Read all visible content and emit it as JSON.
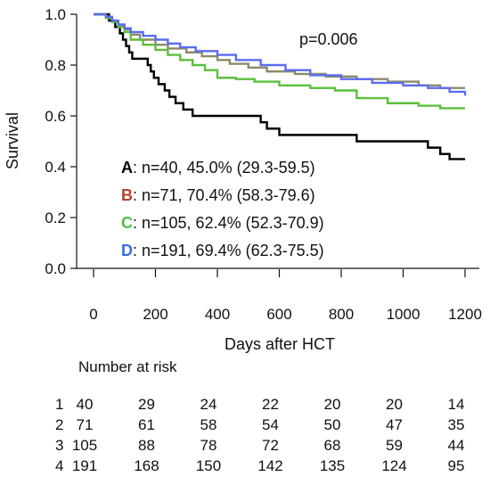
{
  "chart_data": {
    "type": "line",
    "step": true,
    "xlabel": "Days after HCT",
    "ylabel": "Survival",
    "xlim": [
      0,
      1200
    ],
    "ylim": [
      0,
      1.0
    ],
    "xticks": [
      "0",
      "200",
      "400",
      "600",
      "800",
      "1000",
      "1200"
    ],
    "yticks": [
      "0.0",
      "0.2",
      "0.4",
      "0.6",
      "0.8",
      "1.0"
    ],
    "grid": false,
    "annotation": "p=0.006",
    "legend": [
      {
        "letter": "A",
        "color": "#000000",
        "text": ": n=40, 45.0% (29.3-59.5)"
      },
      {
        "letter": "B",
        "color": "#b0442c",
        "text": ": n=71, 70.4% (58.3-79.6)"
      },
      {
        "letter": "C",
        "color": "#4bbf4b",
        "text": ": n=105, 62.4% (52.3-70.9)"
      },
      {
        "letter": "D",
        "color": "#3b6fe0",
        "text": ": n=191, 69.4% (62.3-75.5)"
      }
    ],
    "series": [
      {
        "color": "#000000",
        "points": [
          [
            0,
            1.0
          ],
          [
            40,
            1.0
          ],
          [
            50,
            0.975
          ],
          [
            70,
            0.95
          ],
          [
            85,
            0.925
          ],
          [
            95,
            0.9
          ],
          [
            105,
            0.875
          ],
          [
            115,
            0.85
          ],
          [
            125,
            0.825
          ],
          [
            175,
            0.8
          ],
          [
            185,
            0.775
          ],
          [
            195,
            0.75
          ],
          [
            210,
            0.725
          ],
          [
            230,
            0.7
          ],
          [
            245,
            0.675
          ],
          [
            265,
            0.65
          ],
          [
            290,
            0.625
          ],
          [
            320,
            0.6
          ],
          [
            540,
            0.575
          ],
          [
            560,
            0.55
          ],
          [
            600,
            0.525
          ],
          [
            850,
            0.5
          ],
          [
            1080,
            0.475
          ],
          [
            1120,
            0.45
          ],
          [
            1150,
            0.43
          ],
          [
            1200,
            0.43
          ]
        ]
      },
      {
        "color": "#8b8b6b",
        "points": [
          [
            0,
            1.0
          ],
          [
            30,
            1.0
          ],
          [
            40,
            0.985
          ],
          [
            60,
            0.97
          ],
          [
            80,
            0.955
          ],
          [
            100,
            0.94
          ],
          [
            120,
            0.92
          ],
          [
            150,
            0.9
          ],
          [
            200,
            0.88
          ],
          [
            240,
            0.865
          ],
          [
            300,
            0.85
          ],
          [
            350,
            0.835
          ],
          [
            400,
            0.82
          ],
          [
            440,
            0.805
          ],
          [
            500,
            0.79
          ],
          [
            560,
            0.775
          ],
          [
            650,
            0.765
          ],
          [
            750,
            0.755
          ],
          [
            850,
            0.745
          ],
          [
            950,
            0.735
          ],
          [
            1050,
            0.72
          ],
          [
            1120,
            0.71
          ],
          [
            1200,
            0.71
          ]
        ]
      },
      {
        "color": "#5cbf3c",
        "points": [
          [
            0,
            1.0
          ],
          [
            20,
            1.0
          ],
          [
            40,
            0.985
          ],
          [
            60,
            0.97
          ],
          [
            80,
            0.95
          ],
          [
            100,
            0.93
          ],
          [
            120,
            0.9
          ],
          [
            160,
            0.88
          ],
          [
            200,
            0.86
          ],
          [
            240,
            0.84
          ],
          [
            280,
            0.82
          ],
          [
            320,
            0.8
          ],
          [
            360,
            0.78
          ],
          [
            400,
            0.75
          ],
          [
            460,
            0.745
          ],
          [
            520,
            0.735
          ],
          [
            600,
            0.72
          ],
          [
            700,
            0.71
          ],
          [
            780,
            0.7
          ],
          [
            850,
            0.67
          ],
          [
            950,
            0.65
          ],
          [
            1050,
            0.64
          ],
          [
            1120,
            0.63
          ],
          [
            1200,
            0.63
          ]
        ]
      },
      {
        "color": "#5a6cf0",
        "points": [
          [
            0,
            1.0
          ],
          [
            20,
            1.0
          ],
          [
            40,
            0.99
          ],
          [
            60,
            0.975
          ],
          [
            80,
            0.96
          ],
          [
            100,
            0.945
          ],
          [
            120,
            0.93
          ],
          [
            160,
            0.915
          ],
          [
            200,
            0.9
          ],
          [
            240,
            0.885
          ],
          [
            280,
            0.87
          ],
          [
            330,
            0.855
          ],
          [
            400,
            0.84
          ],
          [
            460,
            0.82
          ],
          [
            540,
            0.8
          ],
          [
            620,
            0.78
          ],
          [
            700,
            0.76
          ],
          [
            800,
            0.745
          ],
          [
            900,
            0.73
          ],
          [
            1000,
            0.72
          ],
          [
            1080,
            0.71
          ],
          [
            1150,
            0.695
          ],
          [
            1200,
            0.68
          ]
        ]
      }
    ]
  },
  "risk_table": {
    "title": "Number at risk",
    "rows": [
      {
        "label": "1",
        "values": [
          "40",
          "29",
          "24",
          "22",
          "20",
          "20",
          "14"
        ]
      },
      {
        "label": "2",
        "values": [
          "71",
          "61",
          "58",
          "54",
          "50",
          "47",
          "35"
        ]
      },
      {
        "label": "3",
        "values": [
          "105",
          "88",
          "78",
          "72",
          "68",
          "59",
          "44"
        ]
      },
      {
        "label": "4",
        "values": [
          "191",
          "168",
          "150",
          "142",
          "135",
          "124",
          "95"
        ]
      }
    ]
  }
}
